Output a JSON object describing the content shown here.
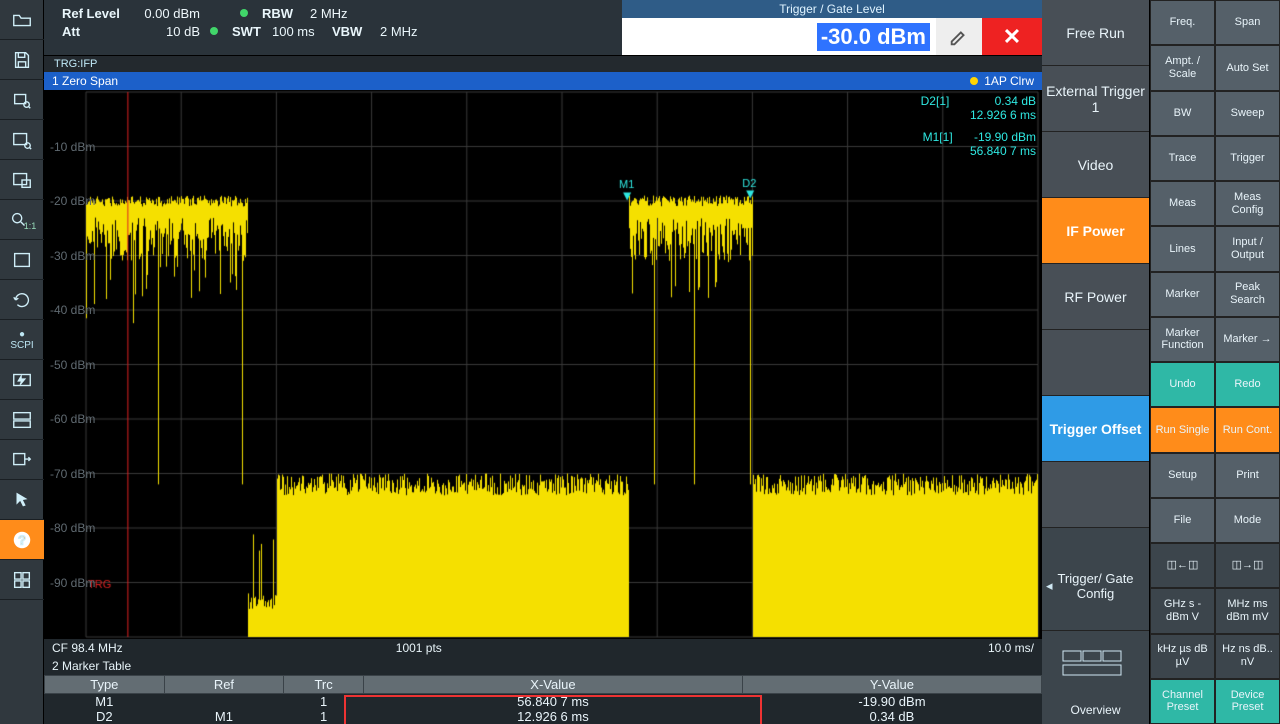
{
  "colors": {
    "accent": "#ff8c1a",
    "blue": "#2f9be6",
    "teal": "#2fb8a6",
    "trace": "#f5e000",
    "grid": "#3a3a3a",
    "marker": "#2fe8e2",
    "titlebar": "#1c60c9"
  },
  "top": {
    "refLevelLabel": "Ref Level",
    "refLevel": "0.00 dBm",
    "attLabel": "Att",
    "att": "10 dB",
    "swtLabel": "SWT",
    "swt": "100 ms",
    "rbwLabel": "RBW",
    "rbw": "2 MHz",
    "vbwLabel": "VBW",
    "vbw": "2 MHz",
    "triggerTitle": "Trigger / Gate Level",
    "triggerValue": "-30.0 dBm"
  },
  "trgLine": "TRG:IFP",
  "spanTitle": "1 Zero Span",
  "traceMode": "1AP Clrw",
  "markerReadout": {
    "d2": {
      "name": "D2[1]",
      "y": "0.34 dB",
      "x": "12.926 6 ms"
    },
    "m1": {
      "name": "M1[1]",
      "y": "-19.90 dBm",
      "x": "56.840 7 ms"
    }
  },
  "markers": {
    "m1": {
      "label": "M1",
      "x_ms": 56.84,
      "y_dbm": -19.9
    },
    "d2": {
      "label": "D2",
      "x_ms": 69.77,
      "y_dbm": -19.56
    }
  },
  "chart": {
    "cf": "CF 98.4 MHz",
    "pts": "1001 pts",
    "span": "10.0 ms/",
    "x_start_ms": 0,
    "x_end_ms": 100,
    "x_div_ms": 10,
    "y_top_dbm": 0,
    "y_bottom_dbm": -100,
    "y_div_dbm": 10,
    "yticks": [
      "-10 dBm",
      "-20 dBm",
      "-30 dBm",
      "-40 dBm",
      "-50 dBm",
      "-60 dBm",
      "-70 dBm",
      "-80 dBm",
      "-90 dBm"
    ],
    "trg_label": "TRG",
    "trg_x_ms": 4.4,
    "trg_y_dbm": -91,
    "bursts": [
      {
        "start_ms": 0,
        "end_ms": 5,
        "top_dbm": -19,
        "ripple_dbm": 4,
        "floor_top_dbm": -72,
        "spikes_to_dbm": -33
      },
      {
        "start_ms": 5,
        "end_ms": 17,
        "top_dbm": -19,
        "ripple_dbm": 4,
        "floor_top_dbm": -72,
        "spikes_to_dbm": -28
      },
      {
        "start_ms": 57,
        "end_ms": 70,
        "top_dbm": -19,
        "ripple_dbm": 4,
        "floor_top_dbm": -72,
        "spikes_to_dbm": -28
      }
    ],
    "noise": {
      "floor_top_dbm": -72,
      "floor_bottom_dbm": -100,
      "gap_intervals_ms": [
        [
          17,
          20
        ]
      ]
    }
  },
  "markerTable": {
    "title": "2 Marker Table",
    "cols": [
      "Type",
      "Ref",
      "Trc",
      "X-Value",
      "Y-Value"
    ],
    "rows": [
      {
        "type": "M1",
        "ref": "",
        "trc": "1",
        "x": "56.840 7 ms",
        "y": "-19.90 dBm"
      },
      {
        "type": "D2",
        "ref": "M1",
        "trc": "1",
        "x": "12.926 6 ms",
        "y": "0.34 dB"
      }
    ]
  },
  "leftToolbar": [
    "open",
    "save",
    "zoom-select",
    "zoom-window",
    "capture",
    "zoom-11",
    "fullscreen",
    "refresh",
    "scpi",
    "bolt",
    "layout",
    "export",
    "pointer",
    "help",
    "windows"
  ],
  "sourceMenu": {
    "items": [
      {
        "id": "free-run",
        "label": "Free Run",
        "style": "dark"
      },
      {
        "id": "ext-trig",
        "label": "External Trigger 1",
        "style": "dark"
      },
      {
        "id": "video",
        "label": "Video",
        "style": "dark"
      },
      {
        "id": "if-power",
        "label": "IF Power",
        "style": "sel"
      },
      {
        "id": "rf-power",
        "label": "RF Power",
        "style": "dark"
      },
      {
        "id": "",
        "label": "",
        "style": "dark"
      },
      {
        "id": "trig-offset",
        "label": "Trigger Offset",
        "style": "blue"
      },
      {
        "id": "",
        "label": "",
        "style": "dark"
      }
    ],
    "cfg": "Trigger/ Gate Config"
  },
  "rightKeys": [
    [
      {
        "l": "Freq."
      },
      {
        "l": "Span"
      }
    ],
    [
      {
        "l": "Ampt. / Scale"
      },
      {
        "l": "Auto Set"
      }
    ],
    [
      {
        "l": "BW"
      },
      {
        "l": "Sweep"
      }
    ],
    [
      {
        "l": "Trace"
      },
      {
        "l": "Trigger"
      }
    ],
    [
      {
        "l": "Meas"
      },
      {
        "l": "Meas Config"
      }
    ],
    [
      {
        "l": "Lines"
      },
      {
        "l": "Input / Output"
      }
    ],
    [
      {
        "l": "Marker"
      },
      {
        "l": "Peak Search"
      }
    ],
    [
      {
        "l": "Marker Function"
      },
      {
        "l": "Marker →"
      }
    ],
    [
      {
        "l": "Undo",
        "c": "teal"
      },
      {
        "l": "Redo",
        "c": "teal"
      }
    ],
    [
      {
        "l": "Run Single",
        "c": "orange"
      },
      {
        "l": "Run Cont.",
        "c": "orange"
      }
    ],
    [
      {
        "l": "Setup"
      },
      {
        "l": "Print"
      }
    ],
    [
      {
        "l": "File"
      },
      {
        "l": "Mode"
      }
    ],
    [
      {
        "l": "◫←◫",
        "c": "dark"
      },
      {
        "l": "◫→◫",
        "c": "dark"
      }
    ],
    [
      {
        "l": "GHz  s -dBm V",
        "c": "dark"
      },
      {
        "l": "MHz ms dBm mV",
        "c": "dark"
      }
    ],
    [
      {
        "l": "kHz  µs dB   µV",
        "c": "dark"
      },
      {
        "l": "Hz   ns dB.. nV",
        "c": "dark"
      }
    ],
    [
      {
        "l": "Channel Preset",
        "c": "teal"
      },
      {
        "l": "Device Preset",
        "c": "teal"
      }
    ]
  ],
  "overview": "Overview"
}
